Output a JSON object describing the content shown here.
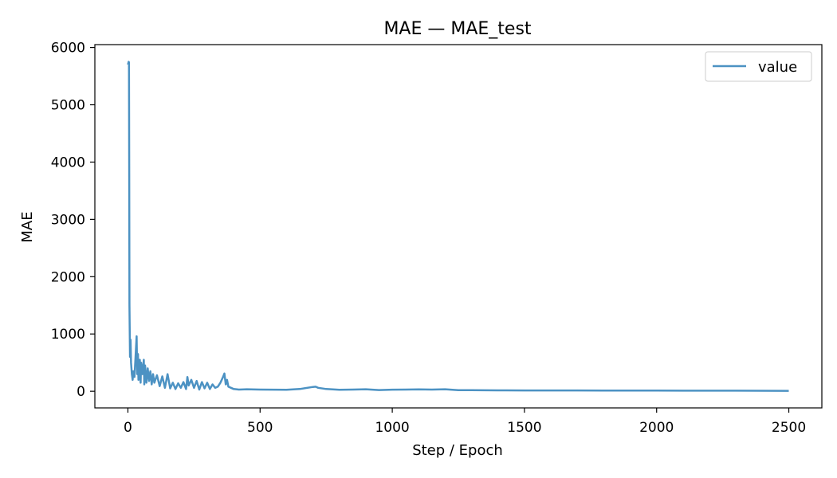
{
  "chart_data": {
    "type": "line",
    "title": "MAE — MAE_test",
    "xlabel": "Step / Epoch",
    "ylabel": "MAE",
    "xlim": [
      -125,
      2625
    ],
    "ylim": [
      -290,
      6050
    ],
    "x_ticks": [
      0,
      500,
      1000,
      1500,
      2000,
      2500
    ],
    "y_ticks": [
      0,
      1000,
      2000,
      3000,
      4000,
      5000,
      6000
    ],
    "grid": false,
    "legend_position": "top-right",
    "series": [
      {
        "name": "value",
        "color": "#1f77b4",
        "x": [
          0,
          3,
          4,
          5,
          6,
          8,
          10,
          12,
          15,
          18,
          20,
          25,
          30,
          33,
          35,
          38,
          40,
          45,
          48,
          50,
          55,
          60,
          62,
          65,
          70,
          75,
          80,
          85,
          90,
          95,
          100,
          110,
          120,
          130,
          140,
          150,
          160,
          170,
          180,
          190,
          200,
          210,
          220,
          225,
          230,
          240,
          250,
          260,
          270,
          280,
          290,
          300,
          310,
          320,
          330,
          340,
          350,
          360,
          365,
          370,
          375,
          380,
          390,
          400,
          420,
          450,
          500,
          550,
          600,
          650,
          700,
          710,
          720,
          750,
          800,
          850,
          900,
          950,
          1000,
          1050,
          1100,
          1150,
          1200,
          1250,
          1300,
          1400,
          1500,
          1600,
          1700,
          1800,
          1900,
          2000,
          2100,
          2200,
          2300,
          2400,
          2500
        ],
        "y": [
          5700,
          5750,
          5740,
          3800,
          1500,
          600,
          900,
          500,
          300,
          200,
          350,
          250,
          700,
          960,
          300,
          650,
          200,
          550,
          150,
          500,
          300,
          550,
          120,
          450,
          150,
          400,
          180,
          350,
          120,
          300,
          150,
          280,
          90,
          260,
          60,
          300,
          50,
          150,
          40,
          140,
          60,
          160,
          40,
          250,
          100,
          200,
          60,
          180,
          30,
          160,
          50,
          150,
          40,
          120,
          60,
          80,
          150,
          250,
          310,
          120,
          200,
          80,
          60,
          40,
          30,
          35,
          30,
          28,
          26,
          40,
          75,
          80,
          60,
          40,
          25,
          30,
          35,
          22,
          28,
          30,
          32,
          30,
          35,
          20,
          18,
          16,
          15,
          14,
          14,
          13,
          12,
          12,
          11,
          10,
          10,
          9,
          8
        ]
      }
    ]
  }
}
